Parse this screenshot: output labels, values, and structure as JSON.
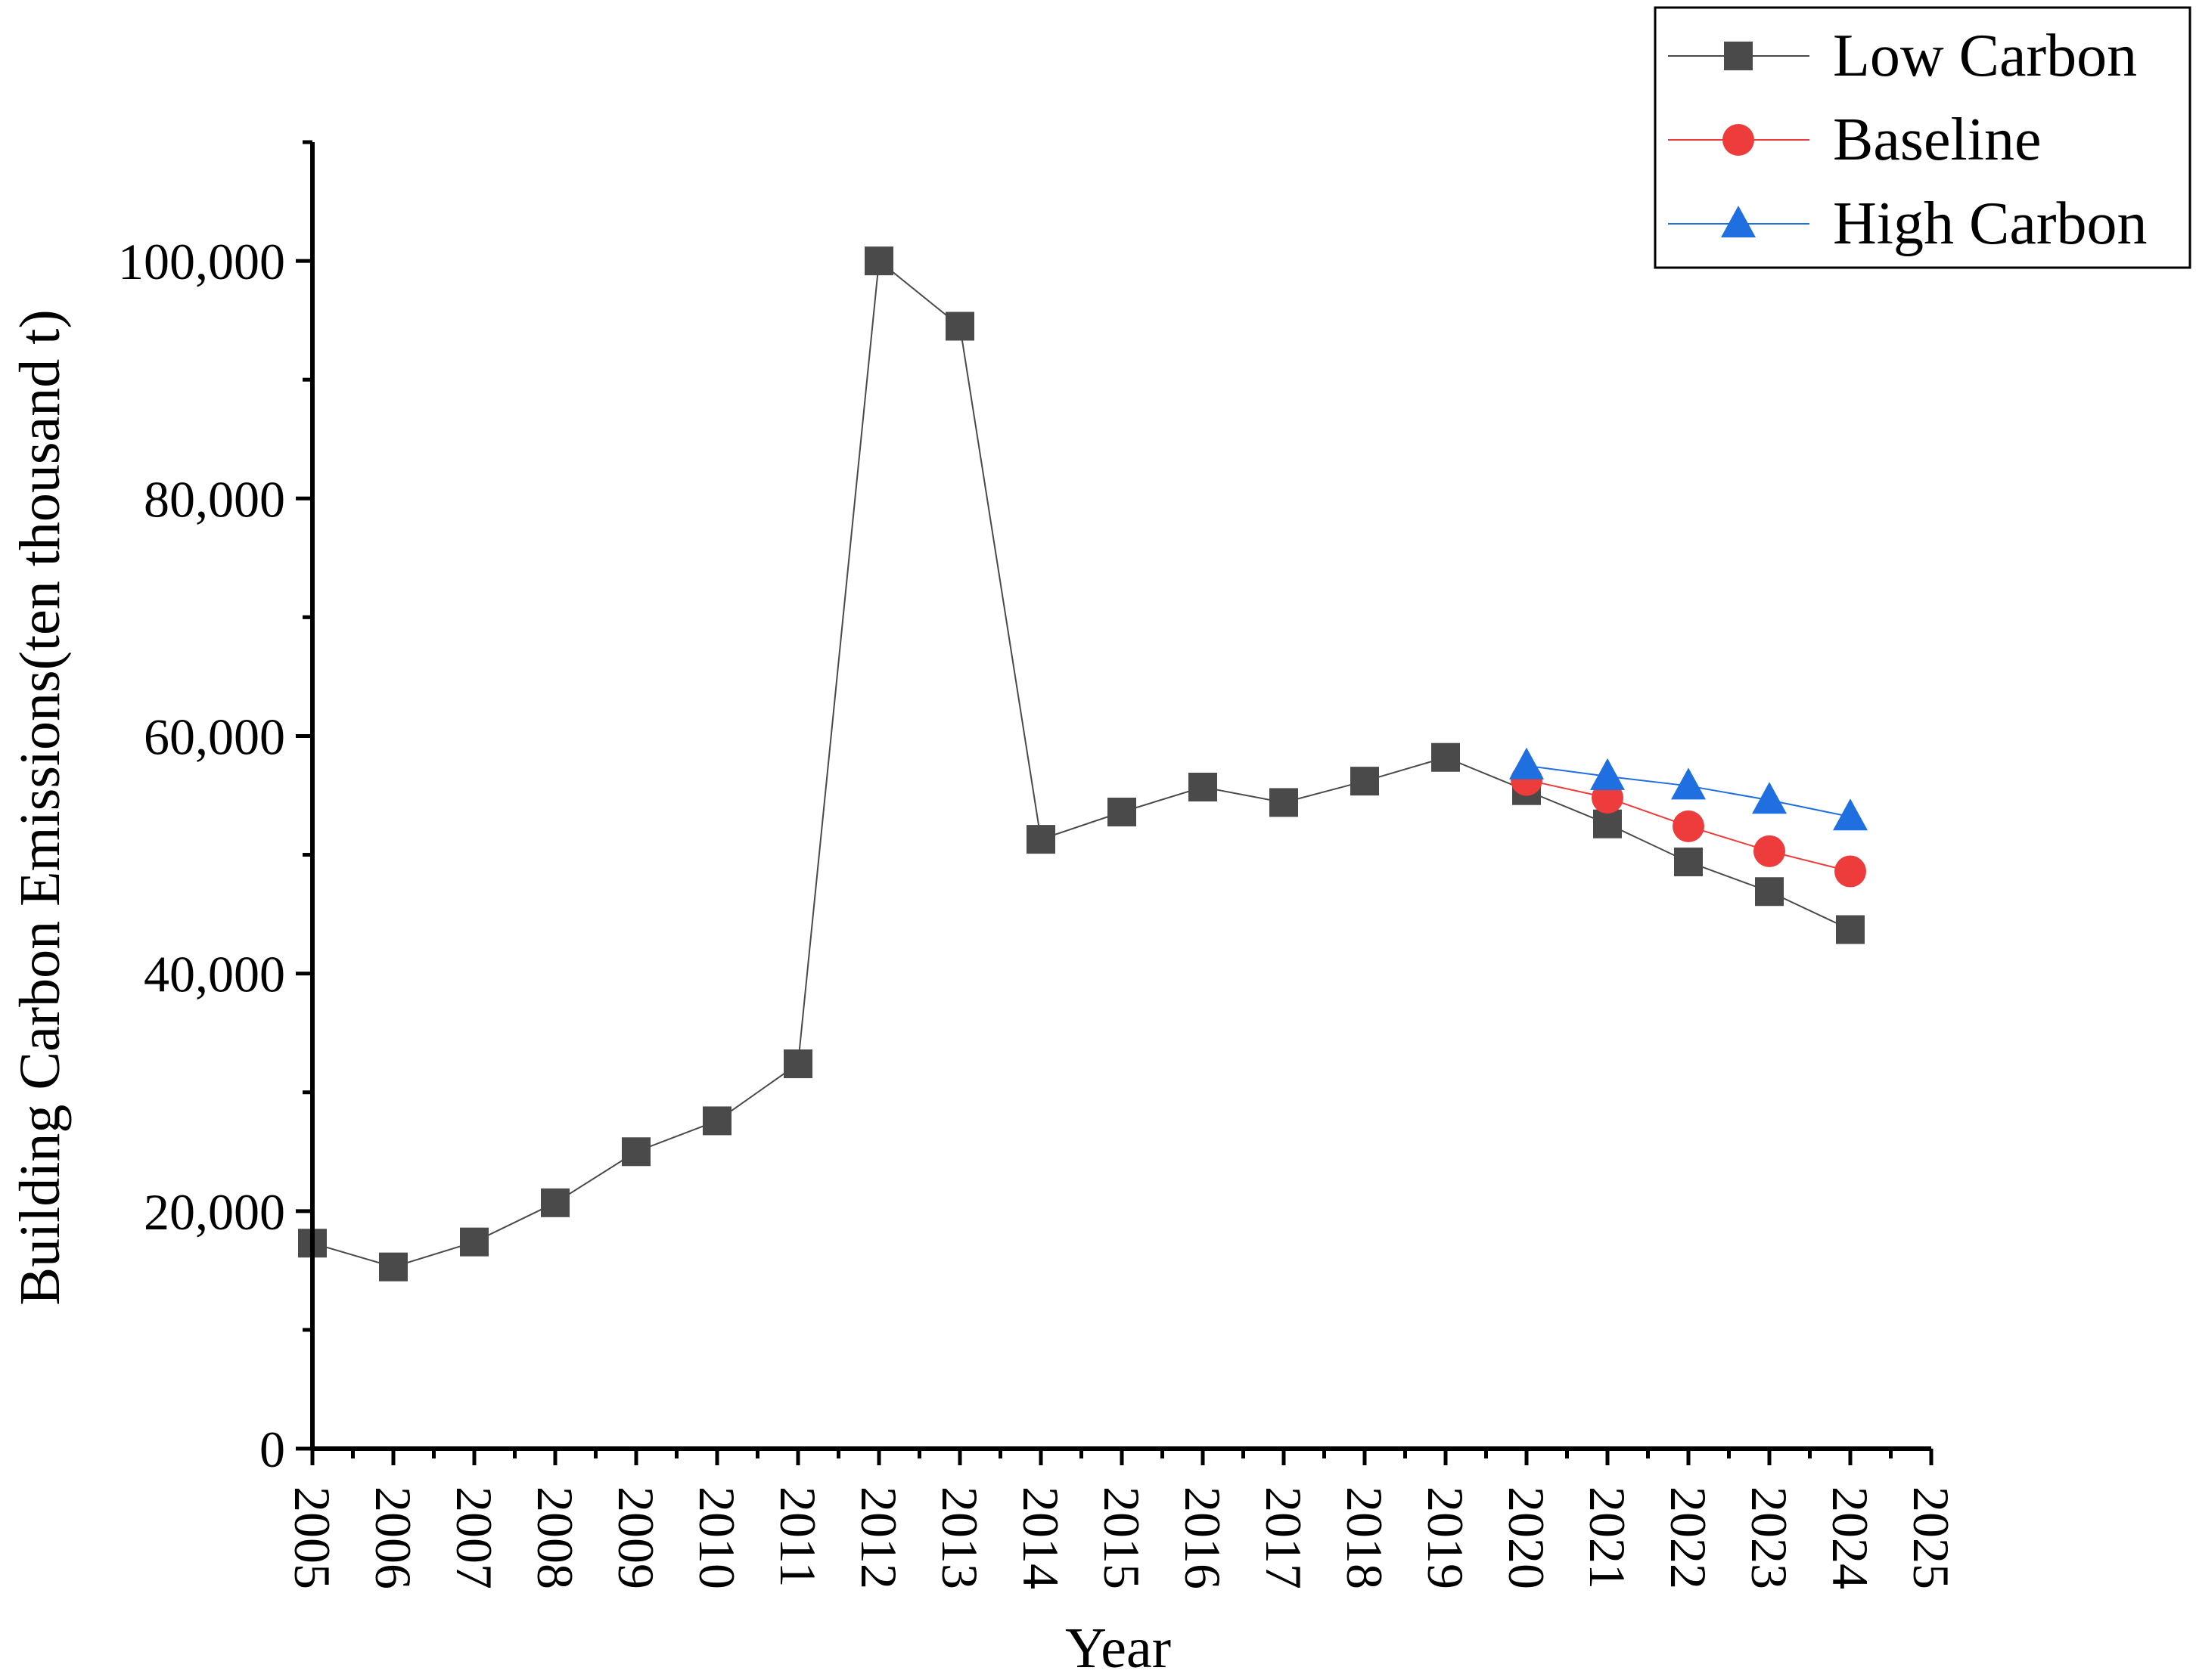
{
  "chart_data": {
    "type": "line",
    "title": "",
    "xlabel": "Year",
    "ylabel": "Building Carbon Emissions(ten thousand t)",
    "xlim": [
      2005,
      2025
    ],
    "ylim": [
      0,
      110000
    ],
    "x_ticks": [
      "2005",
      "2006",
      "2007",
      "2008",
      "2009",
      "2010",
      "2011",
      "2012",
      "2013",
      "2014",
      "2015",
      "2016",
      "2017",
      "2018",
      "2019",
      "2020",
      "2021",
      "2022",
      "2023",
      "2024",
      "2025"
    ],
    "y_ticks": [
      "0",
      "20,000",
      "40,000",
      "60,000",
      "80,000",
      "100,000"
    ],
    "legend_position": "top-right",
    "series": [
      {
        "name": "Low Carbon",
        "color": "#4a4a4a",
        "marker": "square",
        "x": [
          2005,
          2006,
          2007,
          2008,
          2009,
          2010,
          2011,
          2012,
          2013,
          2014,
          2015,
          2016,
          2017,
          2018,
          2019,
          2020,
          2021,
          2022,
          2023,
          2024
        ],
        "values": [
          17300,
          15300,
          17400,
          20700,
          25000,
          27600,
          32400,
          100000,
          94500,
          51300,
          53600,
          55700,
          54400,
          56200,
          58200,
          55400,
          52600,
          49400,
          46900,
          43700
        ]
      },
      {
        "name": "Baseline",
        "color": "#ee3c3c",
        "marker": "circle",
        "x": [
          2020,
          2021,
          2022,
          2023,
          2024
        ],
        "values": [
          56300,
          54800,
          52400,
          50300,
          48600
        ]
      },
      {
        "name": "High Carbon",
        "color": "#1f6fe0",
        "marker": "triangle",
        "x": [
          2020,
          2021,
          2022,
          2023,
          2024
        ],
        "values": [
          57500,
          56600,
          55800,
          54600,
          53200
        ]
      }
    ]
  }
}
